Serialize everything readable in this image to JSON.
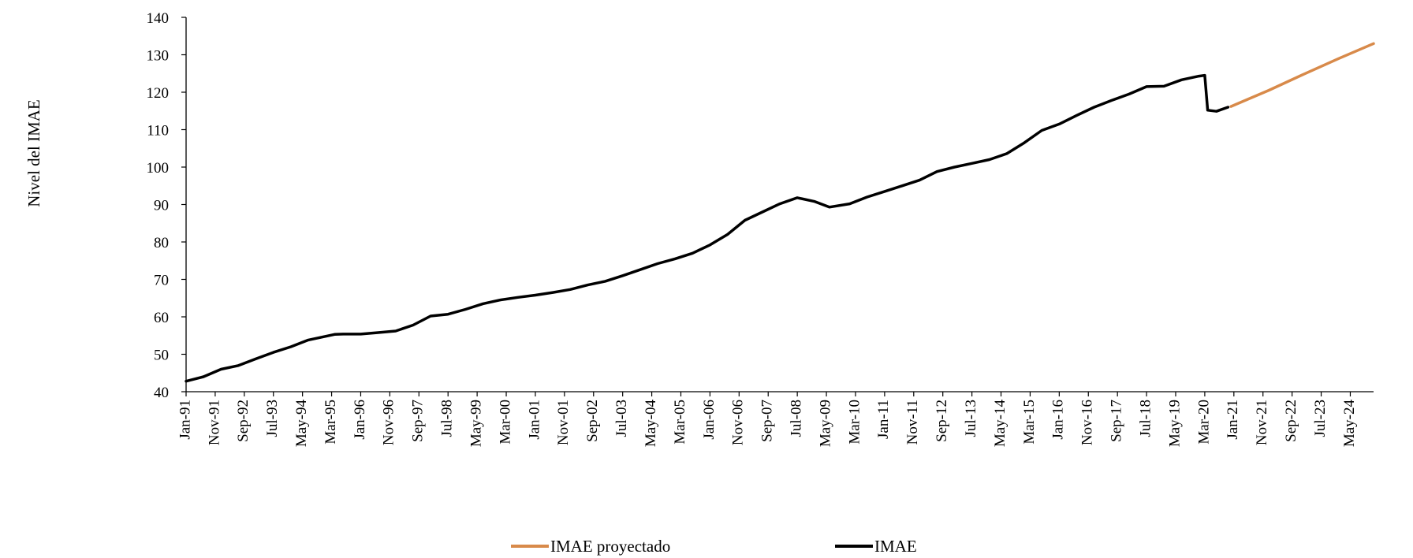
{
  "chart_data": {
    "type": "line",
    "title": "",
    "xlabel": "",
    "ylabel": "Nivel del IMAE",
    "ylim": [
      40,
      140
    ],
    "yticks": [
      40,
      50,
      60,
      70,
      80,
      90,
      100,
      110,
      120,
      130,
      140
    ],
    "x_range": [
      "Jan-91",
      "Jan-25"
    ],
    "xtick_labels": [
      "Jan-91",
      "Nov-91",
      "Sep-92",
      "Jul-93",
      "May-94",
      "Mar-95",
      "Jan-96",
      "Nov-96",
      "Sep-97",
      "Jul-98",
      "May-99",
      "Mar-00",
      "Jan-01",
      "Nov-01",
      "Sep-02",
      "Jul-03",
      "May-04",
      "Mar-05",
      "Jan-06",
      "Nov-06",
      "Sep-07",
      "Jul-08",
      "May-09",
      "Mar-10",
      "Jan-11",
      "Nov-11",
      "Sep-12",
      "Jul-13",
      "May-14",
      "Mar-15",
      "Jan-16",
      "Nov-16",
      "Sep-17",
      "Jul-18",
      "May-19",
      "Mar-20",
      "Jan-21",
      "Nov-21",
      "Sep-22",
      "Jul-23",
      "May-24"
    ],
    "grid": false,
    "legend_position": "bottom",
    "series": [
      {
        "name": "IMAE",
        "color": "#000000",
        "points": [
          [
            "Jan-91",
            42.8
          ],
          [
            "Jul-91",
            44.0
          ],
          [
            "Jan-92",
            46.0
          ],
          [
            "Jul-92",
            47.0
          ],
          [
            "Jan-93",
            48.8
          ],
          [
            "Jul-93",
            50.5
          ],
          [
            "Jan-94",
            52.0
          ],
          [
            "Jul-94",
            53.8
          ],
          [
            "Jan-95",
            54.8
          ],
          [
            "Apr-95",
            55.3
          ],
          [
            "Jul-95",
            55.4
          ],
          [
            "Jan-96",
            55.4
          ],
          [
            "Jul-96",
            55.8
          ],
          [
            "Jan-97",
            56.2
          ],
          [
            "Jul-97",
            57.8
          ],
          [
            "Jan-98",
            60.2
          ],
          [
            "Jul-98",
            60.7
          ],
          [
            "Jan-99",
            62.0
          ],
          [
            "Jul-99",
            63.5
          ],
          [
            "Jan-00",
            64.5
          ],
          [
            "Jul-00",
            65.2
          ],
          [
            "Jan-01",
            65.8
          ],
          [
            "Jul-01",
            66.5
          ],
          [
            "Jan-02",
            67.3
          ],
          [
            "Jul-02",
            68.5
          ],
          [
            "Jan-03",
            69.5
          ],
          [
            "Jul-03",
            71.0
          ],
          [
            "Jan-04",
            72.6
          ],
          [
            "Jul-04",
            74.2
          ],
          [
            "Jan-05",
            75.5
          ],
          [
            "Jul-05",
            77.0
          ],
          [
            "Jan-06",
            79.2
          ],
          [
            "Jul-06",
            82.0
          ],
          [
            "Jan-07",
            85.8
          ],
          [
            "Jul-07",
            88.0
          ],
          [
            "Jan-08",
            90.2
          ],
          [
            "Jul-08",
            91.8
          ],
          [
            "Jan-09",
            90.8
          ],
          [
            "Jun-09",
            89.3
          ],
          [
            "Jan-10",
            90.2
          ],
          [
            "Jul-10",
            92.0
          ],
          [
            "Jan-11",
            93.5
          ],
          [
            "Jul-11",
            95.0
          ],
          [
            "Jan-12",
            96.5
          ],
          [
            "Jul-12",
            98.8
          ],
          [
            "Jan-13",
            100.0
          ],
          [
            "Jul-13",
            101.0
          ],
          [
            "Jan-14",
            102.0
          ],
          [
            "Jul-14",
            103.6
          ],
          [
            "Jan-15",
            106.5
          ],
          [
            "Jul-15",
            109.8
          ],
          [
            "Jan-16",
            111.5
          ],
          [
            "Jul-16",
            113.8
          ],
          [
            "Jan-17",
            116.0
          ],
          [
            "Jul-17",
            117.8
          ],
          [
            "Jan-18",
            119.5
          ],
          [
            "Jul-18",
            121.5
          ],
          [
            "Jan-19",
            121.6
          ],
          [
            "Jul-19",
            123.3
          ],
          [
            "Jan-20",
            124.3
          ],
          [
            "Mar-20",
            124.5
          ],
          [
            "Apr-20",
            115.2
          ],
          [
            "Jul-20",
            114.9
          ],
          [
            "Nov-20",
            116.0
          ]
        ]
      },
      {
        "name": "IMAE proyectado",
        "color": "#D88A4A",
        "points": [
          [
            "Dec-20",
            116.2
          ],
          [
            "Jan-22",
            120.5
          ],
          [
            "Jan-23",
            124.8
          ],
          [
            "Jan-24",
            129.0
          ],
          [
            "Jan-25",
            133.0
          ]
        ]
      }
    ]
  },
  "legend": {
    "items": [
      {
        "label": "IMAE proyectado",
        "color": "#D88A4A"
      },
      {
        "label": "IMAE",
        "color": "#000000"
      }
    ]
  }
}
